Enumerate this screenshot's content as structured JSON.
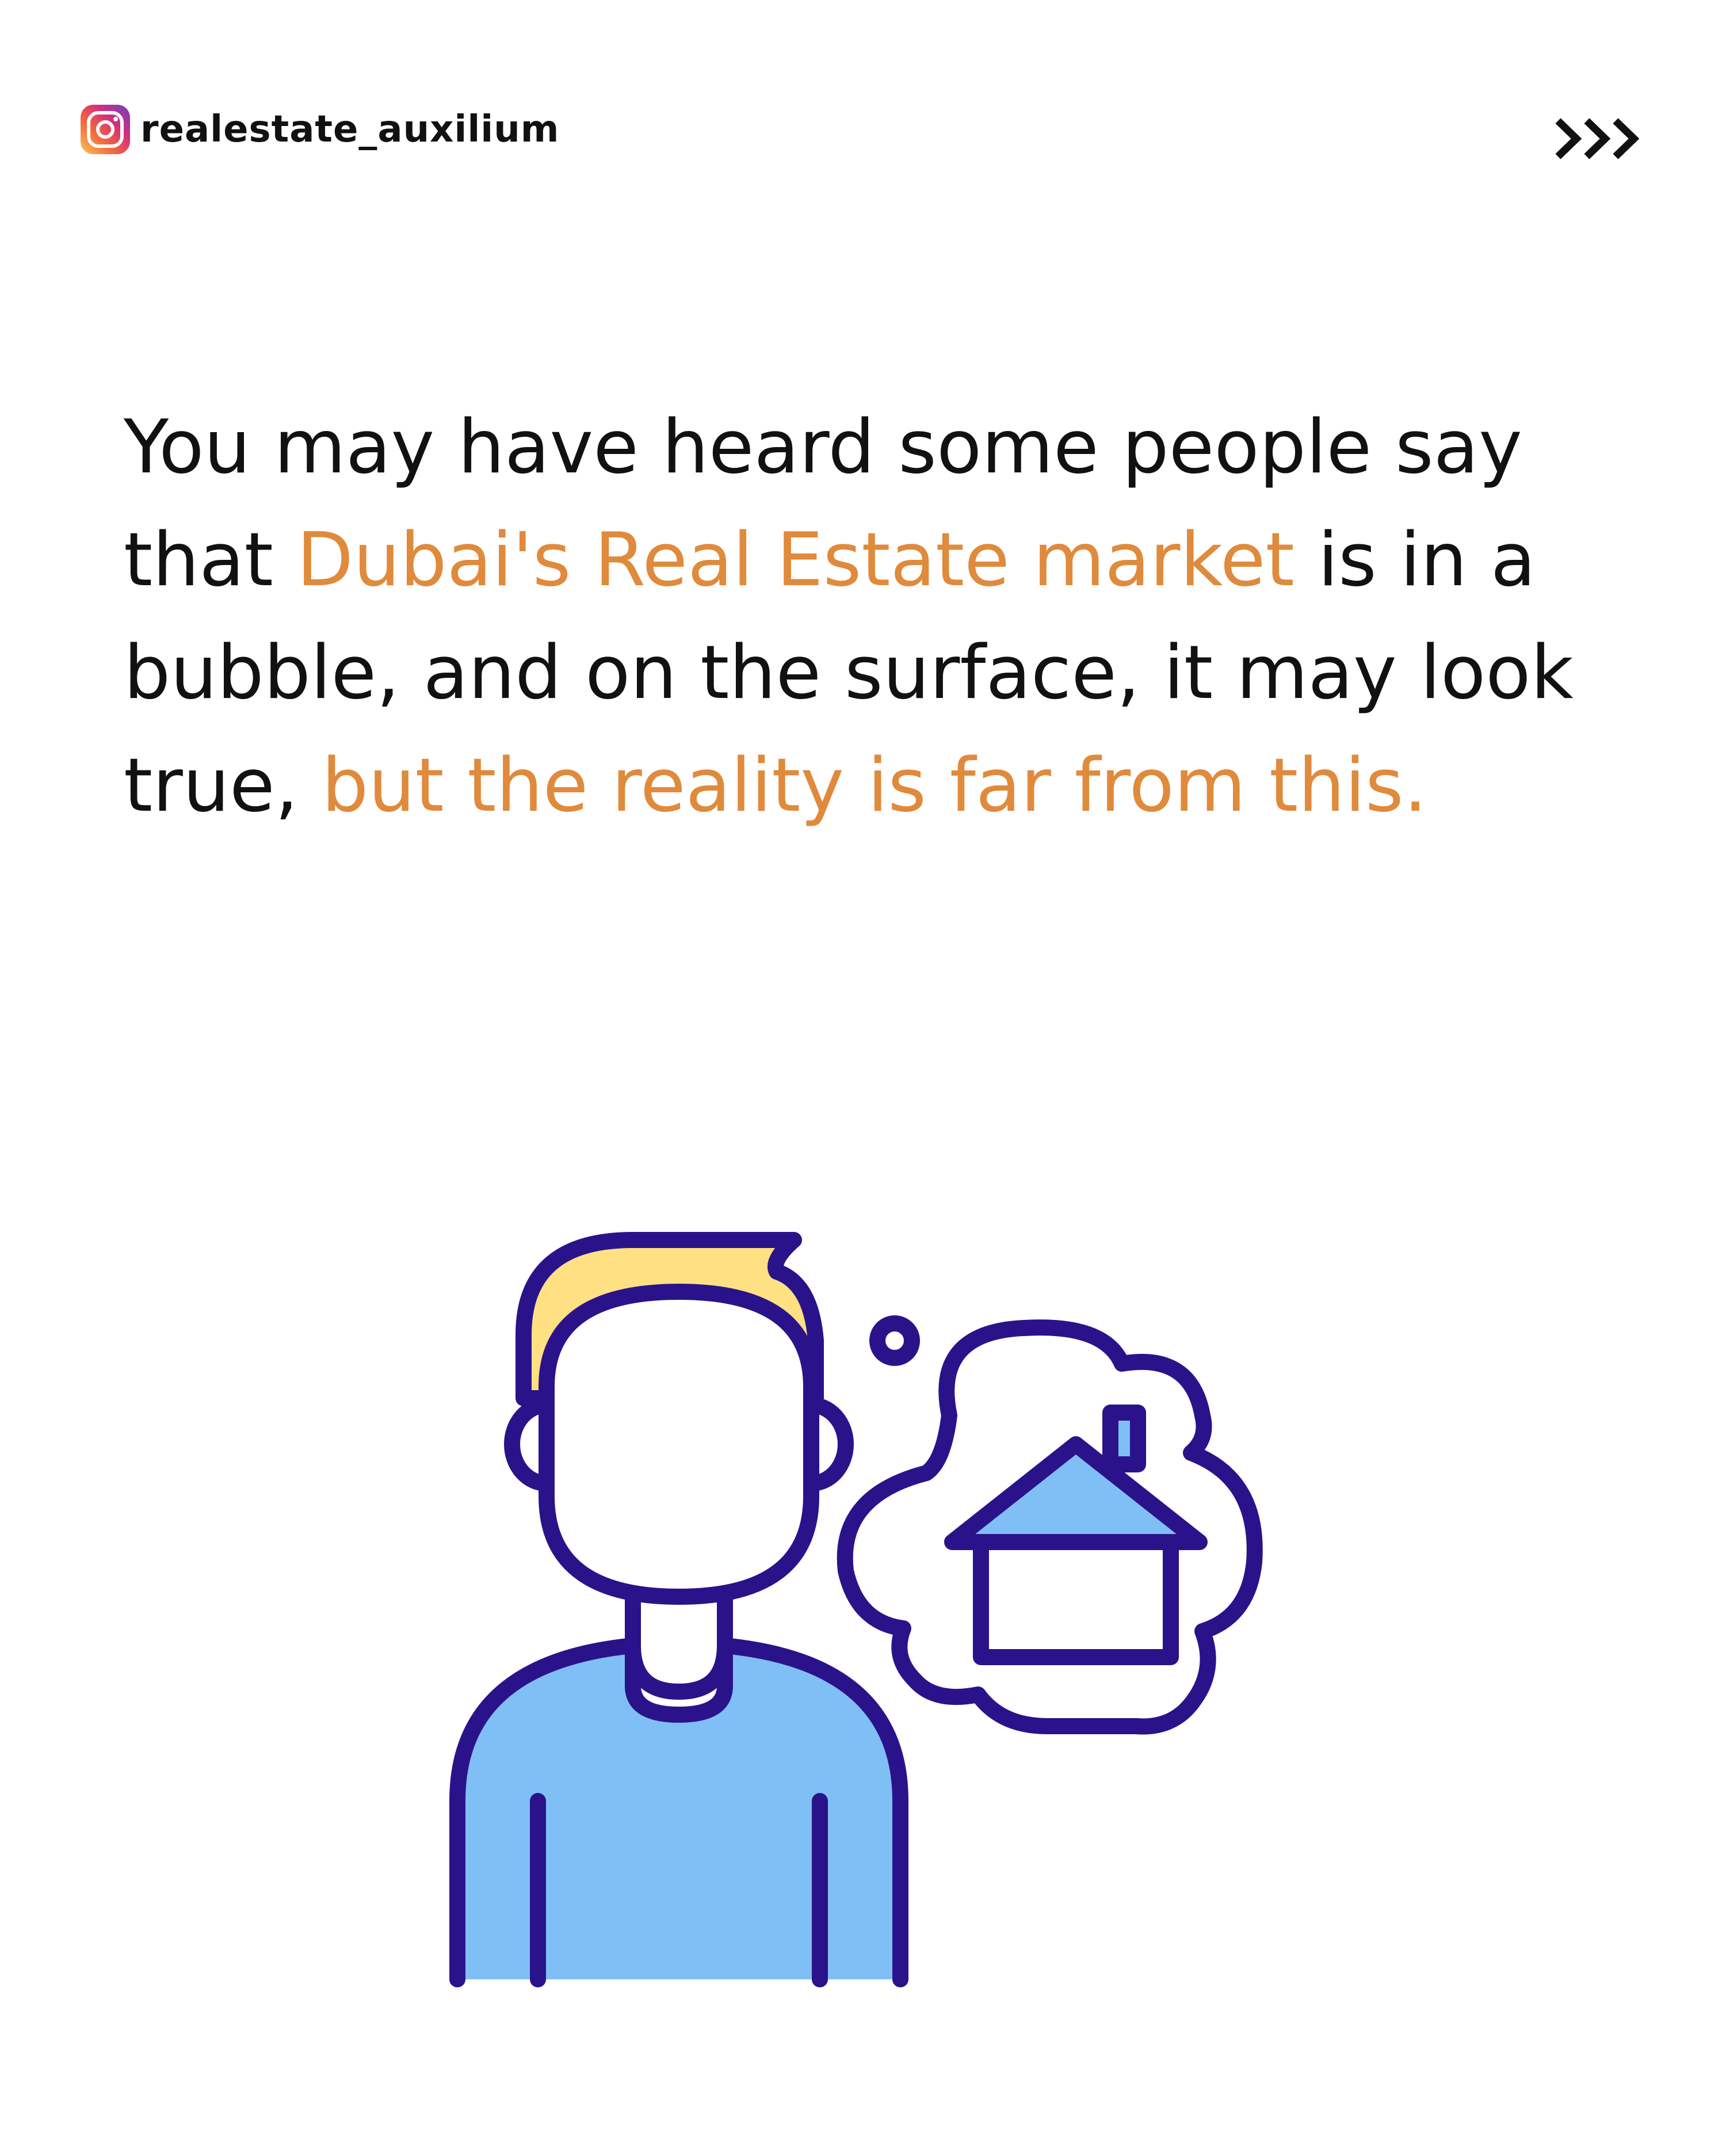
{
  "header": {
    "handle": "realestate_auxilium",
    "platform_icon": "instagram-icon",
    "next_icon": "triple-chevron-right-icon"
  },
  "headline": {
    "line1": "You may have heard some people say",
    "line2_prefix": "that ",
    "line2_highlight": "Dubai's Real Estate market",
    "line2_suffix": " is in a",
    "line3": "bubble, and on the surface, it may look",
    "line4_prefix": "true, ",
    "line4_highlight": "but the reality is far from this."
  },
  "illustration": {
    "icon": "person-thinking-of-house-icon"
  },
  "colors": {
    "background": "#ffffff",
    "text": "#111111",
    "highlight": "#e08a3c",
    "outline": "#2a138a",
    "hair": "#ffe083",
    "shirt": "#80bff5",
    "house_roof": "#80bff5"
  }
}
